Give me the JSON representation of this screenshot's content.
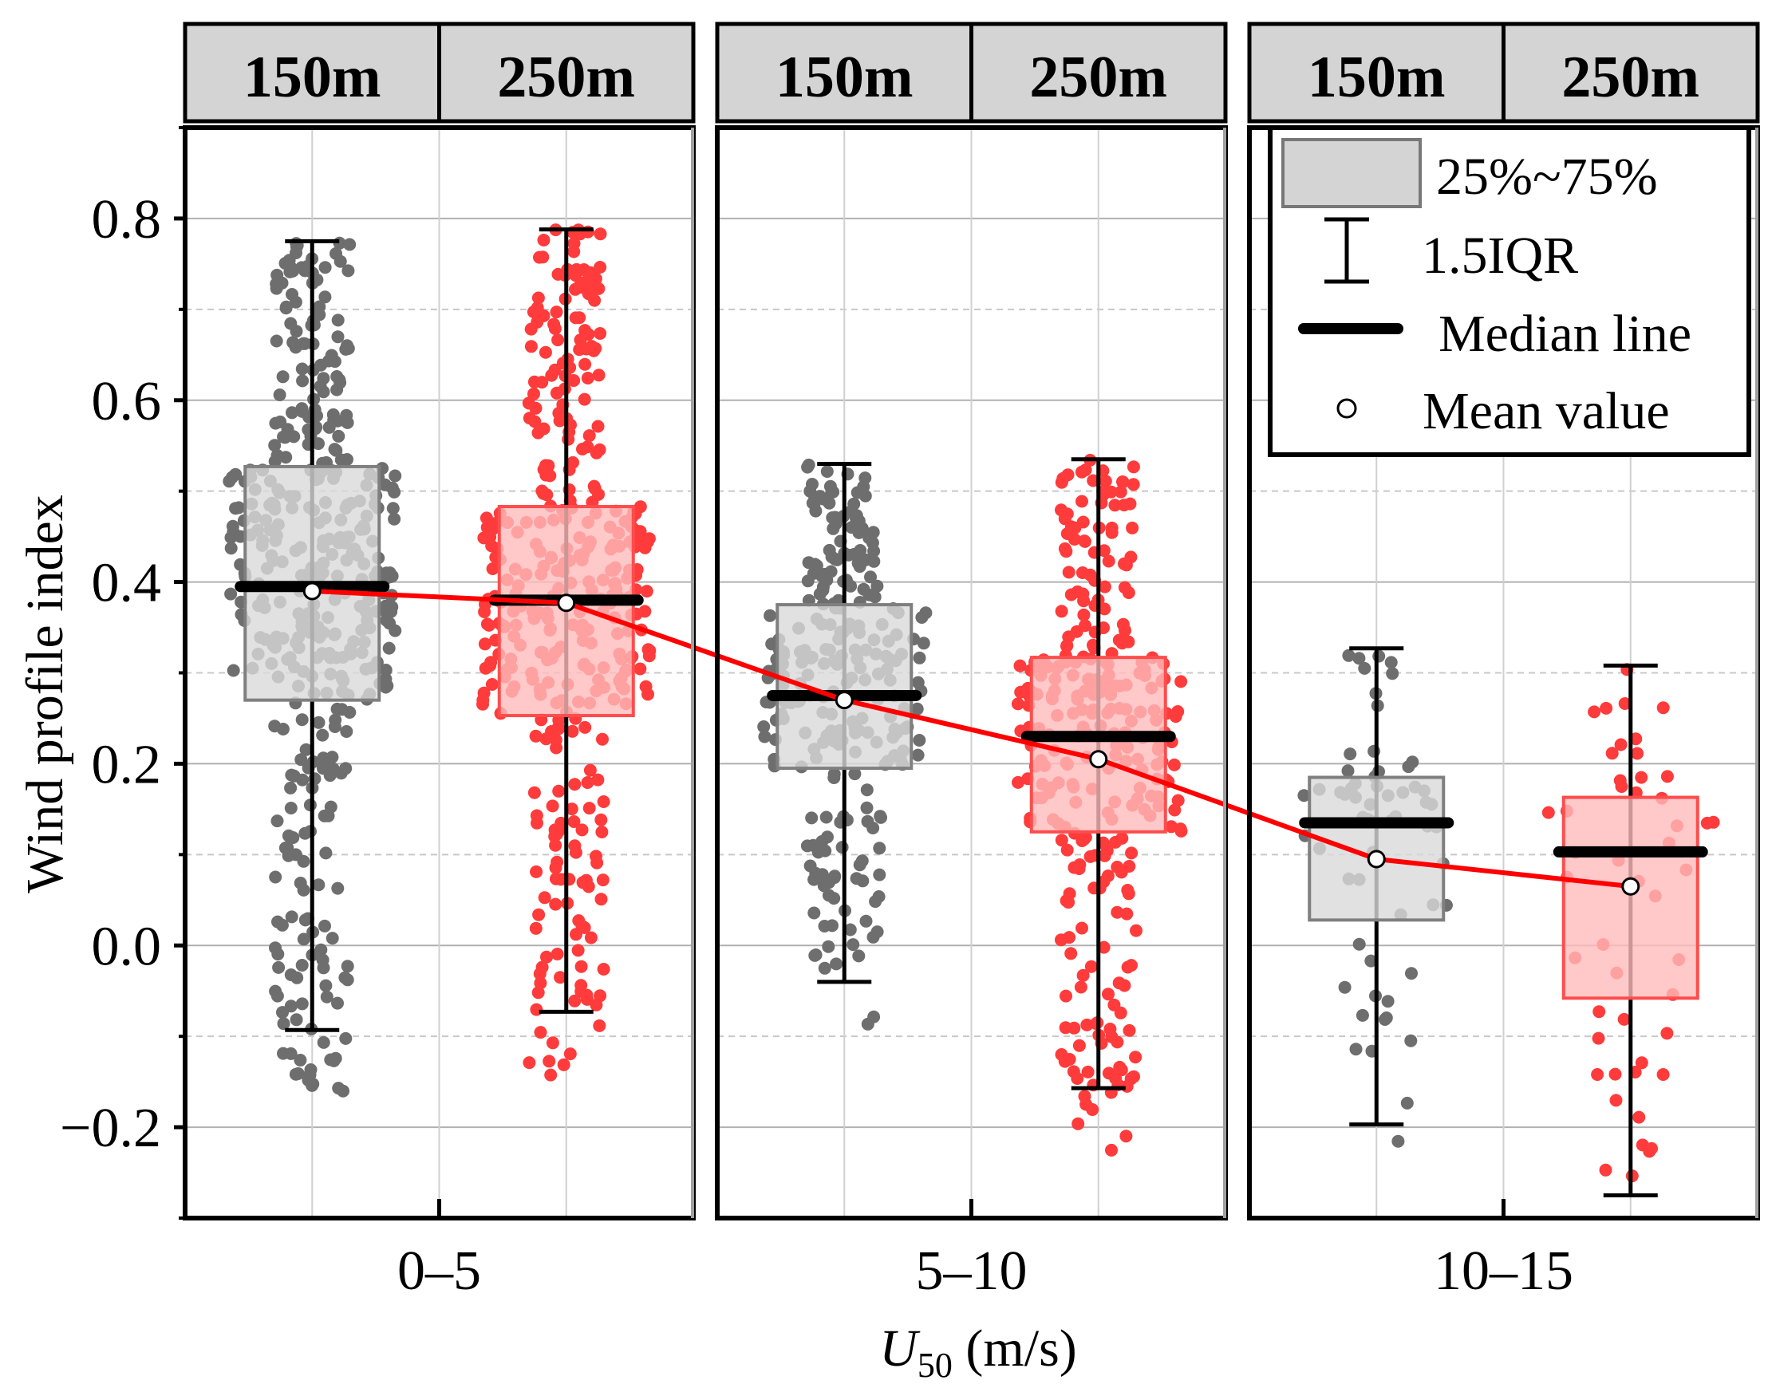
{
  "chart_data": {
    "type": "box",
    "ylabel": "Wind profile index",
    "xlabel_main": "U",
    "xlabel_sub": "50",
    "xlabel_unit": " (m/s)",
    "ylim": [
      -0.3,
      0.9
    ],
    "yticks": [
      -0.2,
      0.0,
      0.2,
      0.4,
      0.6,
      0.8
    ],
    "ytick_labels": [
      "−0.2",
      "0.0",
      "0.2",
      "0.4",
      "0.6",
      "0.8"
    ],
    "groups": [
      {
        "label": "0–5",
        "heights": [
          "150m",
          "250m"
        ]
      },
      {
        "label": "5–10",
        "heights": [
          "150m",
          "250m"
        ]
      },
      {
        "label": "10–15",
        "heights": [
          "150m",
          "250m"
        ]
      }
    ],
    "series": [
      {
        "group": "0–5",
        "height": "150m",
        "color": "#6e6e6e",
        "box_fill": "#d9d9d9",
        "box_edge": "#7f7f7f",
        "q1": 0.27,
        "median": 0.395,
        "q3": 0.527,
        "whisker_low": -0.093,
        "whisker_high": 0.775,
        "mean": 0.39,
        "n_points": 420
      },
      {
        "group": "0–5",
        "height": "250m",
        "color": "#ff3b3b",
        "box_fill": "#ffbcbc",
        "box_edge": "#ff4c4c",
        "q1": 0.253,
        "median": 0.38,
        "q3": 0.483,
        "whisker_low": -0.073,
        "whisker_high": 0.788,
        "mean": 0.377,
        "n_points": 390
      },
      {
        "group": "5–10",
        "height": "150m",
        "color": "#6e6e6e",
        "box_fill": "#d9d9d9",
        "box_edge": "#7f7f7f",
        "q1": 0.195,
        "median": 0.275,
        "q3": 0.375,
        "whisker_low": -0.04,
        "whisker_high": 0.53,
        "mean": 0.27,
        "n_points": 260
      },
      {
        "group": "5–10",
        "height": "250m",
        "color": "#ff3b3b",
        "box_fill": "#ffbcbc",
        "box_edge": "#ff4c4c",
        "q1": 0.125,
        "median": 0.23,
        "q3": 0.317,
        "whisker_low": -0.157,
        "whisker_high": 0.535,
        "mean": 0.205,
        "n_points": 300
      },
      {
        "group": "10–15",
        "height": "150m",
        "color": "#6e6e6e",
        "box_fill": "#d9d9d9",
        "box_edge": "#7f7f7f",
        "q1": 0.028,
        "median": 0.135,
        "q3": 0.185,
        "whisker_low": -0.197,
        "whisker_high": 0.327,
        "mean": 0.095,
        "n_points": 60
      },
      {
        "group": "10–15",
        "height": "250m",
        "color": "#ff3b3b",
        "box_fill": "#ffbcbc",
        "box_edge": "#ff4c4c",
        "q1": -0.058,
        "median": 0.103,
        "q3": 0.163,
        "whisker_low": -0.275,
        "whisker_high": 0.308,
        "mean": 0.065,
        "n_points": 50
      }
    ],
    "mean_line_color": "#ff0000",
    "legend": {
      "position": "top-right",
      "items": [
        "25%~75%",
        "1.5IQR",
        "Median line",
        "Mean value"
      ]
    }
  }
}
